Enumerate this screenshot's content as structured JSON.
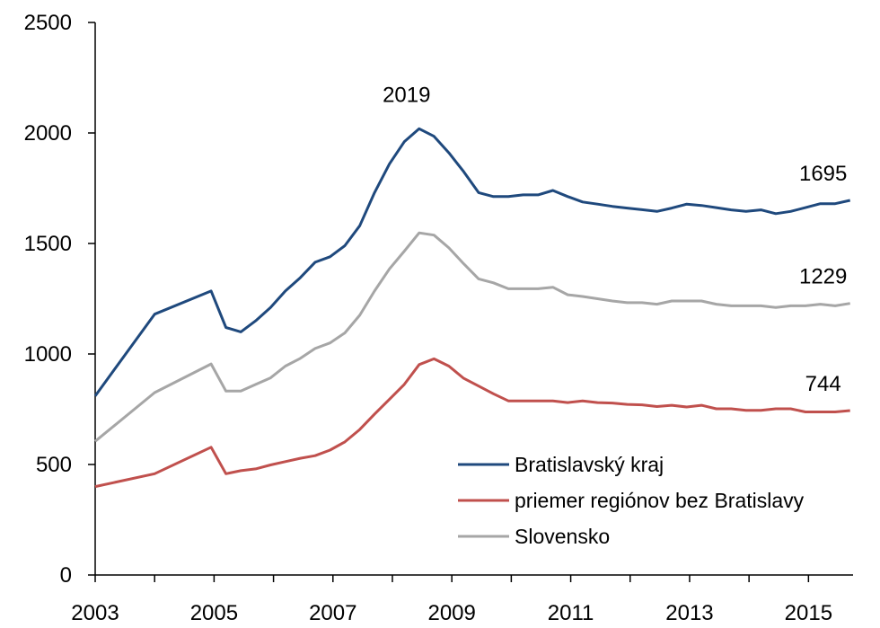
{
  "chart_data": {
    "type": "line",
    "title": "",
    "xlabel": "",
    "ylabel": "",
    "ylim": [
      0,
      2500
    ],
    "yticks": [
      0,
      500,
      1000,
      1500,
      2000,
      2500
    ],
    "xlim": [
      2003,
      2015.75
    ],
    "xticks": [
      2003,
      2005,
      2007,
      2009,
      2011,
      2013,
      2015
    ],
    "grid": false,
    "legend_position": "bottom-right",
    "series": [
      {
        "name": "Bratislavský kraj",
        "color": "#1f497d",
        "points": [
          [
            2003.0,
            810
          ],
          [
            2004.0,
            1180
          ],
          [
            2004.95,
            1285
          ],
          [
            2005.2,
            1120
          ],
          [
            2005.45,
            1100
          ],
          [
            2005.7,
            1150
          ],
          [
            2005.95,
            1210
          ],
          [
            2006.2,
            1285
          ],
          [
            2006.45,
            1345
          ],
          [
            2006.7,
            1415
          ],
          [
            2006.95,
            1440
          ],
          [
            2007.2,
            1490
          ],
          [
            2007.45,
            1580
          ],
          [
            2007.7,
            1730
          ],
          [
            2007.95,
            1860
          ],
          [
            2008.2,
            1960
          ],
          [
            2008.45,
            2019
          ],
          [
            2008.7,
            1985
          ],
          [
            2008.95,
            1910
          ],
          [
            2009.2,
            1825
          ],
          [
            2009.45,
            1730
          ],
          [
            2009.7,
            1712
          ],
          [
            2009.95,
            1712
          ],
          [
            2010.2,
            1720
          ],
          [
            2010.45,
            1720
          ],
          [
            2010.7,
            1740
          ],
          [
            2010.95,
            1712
          ],
          [
            2011.2,
            1688
          ],
          [
            2011.45,
            1678
          ],
          [
            2011.7,
            1668
          ],
          [
            2011.95,
            1660
          ],
          [
            2012.2,
            1653
          ],
          [
            2012.45,
            1645
          ],
          [
            2012.7,
            1660
          ],
          [
            2012.95,
            1678
          ],
          [
            2013.2,
            1672
          ],
          [
            2013.45,
            1662
          ],
          [
            2013.7,
            1652
          ],
          [
            2013.95,
            1645
          ],
          [
            2014.2,
            1652
          ],
          [
            2014.45,
            1635
          ],
          [
            2014.7,
            1645
          ],
          [
            2014.95,
            1662
          ],
          [
            2015.2,
            1680
          ],
          [
            2015.45,
            1680
          ],
          [
            2015.7,
            1695
          ]
        ],
        "end_label": "1695"
      },
      {
        "name": "priemer regiónov bez Bratislavy",
        "color": "#c0504d",
        "points": [
          [
            2003.0,
            400
          ],
          [
            2004.0,
            458
          ],
          [
            2004.95,
            578
          ],
          [
            2005.2,
            458
          ],
          [
            2005.45,
            472
          ],
          [
            2005.7,
            480
          ],
          [
            2005.95,
            498
          ],
          [
            2006.2,
            513
          ],
          [
            2006.45,
            528
          ],
          [
            2006.7,
            540
          ],
          [
            2006.95,
            565
          ],
          [
            2007.2,
            602
          ],
          [
            2007.45,
            658
          ],
          [
            2007.7,
            728
          ],
          [
            2007.95,
            795
          ],
          [
            2008.2,
            862
          ],
          [
            2008.45,
            952
          ],
          [
            2008.7,
            978
          ],
          [
            2008.95,
            945
          ],
          [
            2009.2,
            890
          ],
          [
            2009.45,
            855
          ],
          [
            2009.7,
            820
          ],
          [
            2009.95,
            788
          ],
          [
            2010.2,
            788
          ],
          [
            2010.45,
            788
          ],
          [
            2010.7,
            788
          ],
          [
            2010.95,
            780
          ],
          [
            2011.2,
            788
          ],
          [
            2011.45,
            780
          ],
          [
            2011.7,
            778
          ],
          [
            2011.95,
            772
          ],
          [
            2012.2,
            770
          ],
          [
            2012.45,
            762
          ],
          [
            2012.7,
            768
          ],
          [
            2012.95,
            760
          ],
          [
            2013.2,
            768
          ],
          [
            2013.45,
            752
          ],
          [
            2013.7,
            752
          ],
          [
            2013.95,
            745
          ],
          [
            2014.2,
            745
          ],
          [
            2014.45,
            752
          ],
          [
            2014.7,
            752
          ],
          [
            2014.95,
            738
          ],
          [
            2015.2,
            738
          ],
          [
            2015.45,
            738
          ],
          [
            2015.7,
            744
          ]
        ],
        "end_label": "744"
      },
      {
        "name": "Slovensko",
        "color": "#a6a6a6",
        "points": [
          [
            2003.0,
            605
          ],
          [
            2004.0,
            825
          ],
          [
            2004.95,
            955
          ],
          [
            2005.2,
            832
          ],
          [
            2005.45,
            832
          ],
          [
            2005.7,
            862
          ],
          [
            2005.95,
            892
          ],
          [
            2006.2,
            945
          ],
          [
            2006.45,
            980
          ],
          [
            2006.7,
            1025
          ],
          [
            2006.95,
            1050
          ],
          [
            2007.2,
            1095
          ],
          [
            2007.45,
            1175
          ],
          [
            2007.7,
            1285
          ],
          [
            2007.95,
            1385
          ],
          [
            2008.2,
            1465
          ],
          [
            2008.45,
            1548
          ],
          [
            2008.7,
            1538
          ],
          [
            2008.95,
            1480
          ],
          [
            2009.2,
            1408
          ],
          [
            2009.45,
            1340
          ],
          [
            2009.7,
            1322
          ],
          [
            2009.95,
            1295
          ],
          [
            2010.2,
            1295
          ],
          [
            2010.45,
            1295
          ],
          [
            2010.7,
            1302
          ],
          [
            2010.95,
            1268
          ],
          [
            2011.2,
            1260
          ],
          [
            2011.45,
            1250
          ],
          [
            2011.7,
            1240
          ],
          [
            2011.95,
            1232
          ],
          [
            2012.2,
            1232
          ],
          [
            2012.45,
            1225
          ],
          [
            2012.7,
            1240
          ],
          [
            2012.95,
            1240
          ],
          [
            2013.2,
            1240
          ],
          [
            2013.45,
            1225
          ],
          [
            2013.7,
            1218
          ],
          [
            2013.95,
            1218
          ],
          [
            2014.2,
            1218
          ],
          [
            2014.45,
            1210
          ],
          [
            2014.7,
            1218
          ],
          [
            2014.95,
            1218
          ],
          [
            2015.2,
            1225
          ],
          [
            2015.45,
            1218
          ],
          [
            2015.7,
            1229
          ]
        ],
        "end_label": "1229"
      }
    ],
    "annotations": [
      {
        "text": "2019",
        "x": 2008.45,
        "y": 2019,
        "series": "Bratislavský kraj"
      }
    ]
  }
}
